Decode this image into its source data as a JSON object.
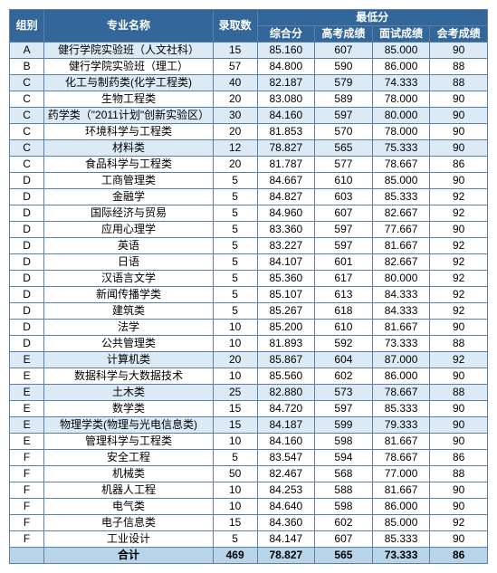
{
  "headers": {
    "group": "组别",
    "name": "专业名称",
    "count": "录取数",
    "min_score": "最低分",
    "comp": "综合分",
    "gk": "高考成绩",
    "ms": "面试成绩",
    "hk": "会考成绩"
  },
  "rows": [
    {
      "g": "A",
      "n": "健行学院实验班（人文社科）",
      "c": 15,
      "s1": "85.160",
      "s2": 607,
      "s3": "85.000",
      "s4": 90,
      "alt": true
    },
    {
      "g": "B",
      "n": "健行学院实验班（理工）",
      "c": 57,
      "s1": "84.800",
      "s2": 590,
      "s3": "86.000",
      "s4": 88,
      "alt": false
    },
    {
      "g": "C",
      "n": "化工与制药类(化学工程类)",
      "c": 40,
      "s1": "82.187",
      "s2": 579,
      "s3": "74.333",
      "s4": 88,
      "alt": true
    },
    {
      "g": "C",
      "n": "生物工程类",
      "c": 20,
      "s1": "83.080",
      "s2": 589,
      "s3": "78.000",
      "s4": 90,
      "alt": false
    },
    {
      "g": "C",
      "n": "药学类（\"2011计划\"创新实验区）",
      "c": 30,
      "s1": "84.160",
      "s2": 597,
      "s3": "80.000",
      "s4": 90,
      "alt": true
    },
    {
      "g": "C",
      "n": "环境科学与工程类",
      "c": 20,
      "s1": "81.853",
      "s2": 570,
      "s3": "78.000",
      "s4": 90,
      "alt": false
    },
    {
      "g": "C",
      "n": "材料类",
      "c": 12,
      "s1": "78.827",
      "s2": 565,
      "s3": "75.333",
      "s4": 90,
      "alt": true
    },
    {
      "g": "C",
      "n": "食品科学与工程类",
      "c": 20,
      "s1": "81.787",
      "s2": 577,
      "s3": "78.667",
      "s4": 86,
      "alt": false
    },
    {
      "g": "D",
      "n": "工商管理类",
      "c": 5,
      "s1": "84.667",
      "s2": 610,
      "s3": "85.000",
      "s4": 90,
      "alt": false
    },
    {
      "g": "D",
      "n": "金融学",
      "c": 5,
      "s1": "84.827",
      "s2": 603,
      "s3": "85.333",
      "s4": 92,
      "alt": false
    },
    {
      "g": "D",
      "n": "国际经济与贸易",
      "c": 5,
      "s1": "84.960",
      "s2": 607,
      "s3": "82.667",
      "s4": 92,
      "alt": false
    },
    {
      "g": "D",
      "n": "应用心理学",
      "c": 5,
      "s1": "83.360",
      "s2": 597,
      "s3": "77.667",
      "s4": 90,
      "alt": false
    },
    {
      "g": "D",
      "n": "英语",
      "c": 5,
      "s1": "83.227",
      "s2": 597,
      "s3": "81.667",
      "s4": 92,
      "alt": false
    },
    {
      "g": "D",
      "n": "日语",
      "c": 5,
      "s1": "84.107",
      "s2": 601,
      "s3": "82.667",
      "s4": 92,
      "alt": false
    },
    {
      "g": "D",
      "n": "汉语言文学",
      "c": 5,
      "s1": "85.360",
      "s2": 617,
      "s3": "80.000",
      "s4": 92,
      "alt": false
    },
    {
      "g": "D",
      "n": "新闻传播学类",
      "c": 5,
      "s1": "85.107",
      "s2": 613,
      "s3": "84.333",
      "s4": 92,
      "alt": false
    },
    {
      "g": "D",
      "n": "建筑类",
      "c": 5,
      "s1": "85.267",
      "s2": 618,
      "s3": "84.333",
      "s4": 92,
      "alt": false
    },
    {
      "g": "D",
      "n": "法学",
      "c": 10,
      "s1": "85.200",
      "s2": 610,
      "s3": "81.667",
      "s4": 90,
      "alt": false
    },
    {
      "g": "D",
      "n": "公共管理类",
      "c": 10,
      "s1": "81.893",
      "s2": 592,
      "s3": "73.333",
      "s4": 88,
      "alt": false
    },
    {
      "g": "E",
      "n": "计算机类",
      "c": 20,
      "s1": "85.867",
      "s2": 604,
      "s3": "87.000",
      "s4": 92,
      "alt": true
    },
    {
      "g": "E",
      "n": "数据科学与大数据技术",
      "c": 10,
      "s1": "85.560",
      "s2": 602,
      "s3": "86.000",
      "s4": 90,
      "alt": false
    },
    {
      "g": "E",
      "n": "土木类",
      "c": 25,
      "s1": "82.880",
      "s2": 573,
      "s3": "78.667",
      "s4": 88,
      "alt": true
    },
    {
      "g": "E",
      "n": "数学类",
      "c": 15,
      "s1": "84.720",
      "s2": 597,
      "s3": "85.333",
      "s4": 90,
      "alt": false
    },
    {
      "g": "E",
      "n": "物理学类(物理与光电信息类)",
      "c": 15,
      "s1": "84.187",
      "s2": 599,
      "s3": "79.333",
      "s4": 90,
      "alt": true
    },
    {
      "g": "E",
      "n": "管理科学与工程类",
      "c": 10,
      "s1": "84.160",
      "s2": 598,
      "s3": "81.667",
      "s4": 90,
      "alt": false
    },
    {
      "g": "F",
      "n": "安全工程",
      "c": 5,
      "s1": "83.547",
      "s2": 594,
      "s3": "78.667",
      "s4": 86,
      "alt": false
    },
    {
      "g": "F",
      "n": "机械类",
      "c": 50,
      "s1": "82.467",
      "s2": 568,
      "s3": "77.000",
      "s4": 88,
      "alt": false
    },
    {
      "g": "F",
      "n": "机器人工程",
      "c": 10,
      "s1": "84.253",
      "s2": 588,
      "s3": "81.667",
      "s4": 90,
      "alt": false
    },
    {
      "g": "F",
      "n": "电气类",
      "c": 10,
      "s1": "84.640",
      "s2": 598,
      "s3": "86.000",
      "s4": 90,
      "alt": false
    },
    {
      "g": "F",
      "n": "电子信息类",
      "c": 15,
      "s1": "84.360",
      "s2": 602,
      "s3": "85.000",
      "s4": 92,
      "alt": false
    },
    {
      "g": "F",
      "n": "工业设计",
      "c": 5,
      "s1": "84.147",
      "s2": 607,
      "s3": "85.333",
      "s4": 90,
      "alt": false
    }
  ],
  "total": {
    "g": "",
    "n": "合计",
    "c": 469,
    "s1": "78.827",
    "s2": 565,
    "s3": "73.333",
    "s4": 86
  }
}
